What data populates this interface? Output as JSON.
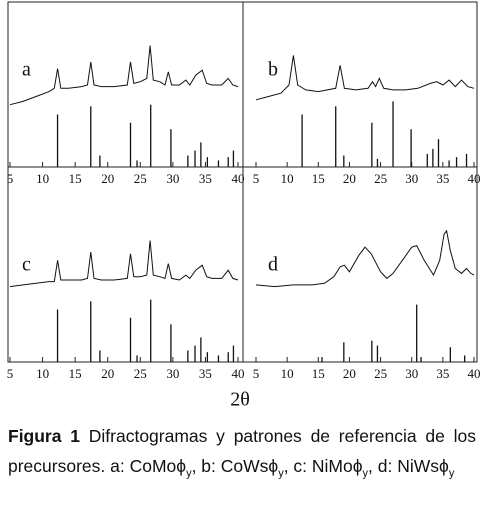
{
  "chart_data": [
    {
      "type": "line",
      "label": "a",
      "xlim": [
        5,
        40
      ],
      "xticks": [
        5,
        10,
        15,
        20,
        25,
        30,
        35,
        40
      ],
      "ylim": [
        0,
        100
      ],
      "series": [
        {
          "type": "line",
          "color": "#111111",
          "x": [
            5,
            7,
            9,
            11,
            11.8,
            12.3,
            12.8,
            14,
            16,
            16.9,
            17.4,
            17.9,
            19,
            21,
            23,
            23.5,
            24,
            25,
            26,
            26.5,
            27,
            28,
            28.8,
            29.3,
            29.8,
            31,
            32,
            32.6,
            33.5,
            34.5,
            35.2,
            36,
            37.5,
            38.5,
            39.2,
            40
          ],
          "values": [
            38,
            40,
            43,
            46,
            48,
            60,
            48,
            48,
            49,
            50,
            64,
            50,
            49,
            49,
            50,
            64,
            51,
            52,
            54,
            74,
            53,
            52,
            50,
            58,
            50,
            50,
            53,
            50,
            56,
            59,
            51,
            50,
            50,
            54,
            50,
            49
          ]
        },
        {
          "type": "stick",
          "color": "#111111",
          "x": [
            12.3,
            17.4,
            18.8,
            23.5,
            24.5,
            26.6,
            29.7,
            32.3,
            33.4,
            34.3,
            35.3,
            37,
            38.5,
            39.3
          ],
          "values": [
            32,
            37,
            7,
            27,
            4,
            38,
            23,
            7,
            10,
            15,
            6,
            4,
            6,
            10
          ]
        }
      ]
    },
    {
      "type": "line",
      "label": "b",
      "xlim": [
        5,
        40
      ],
      "xticks": [
        5,
        10,
        15,
        20,
        25,
        30,
        35,
        40
      ],
      "ylim": [
        0,
        100
      ],
      "series": [
        {
          "type": "line",
          "color": "#111111",
          "x": [
            5,
            7,
            9,
            10.3,
            11,
            11.7,
            13,
            15,
            17.8,
            18.5,
            19.2,
            21,
            23,
            23.7,
            24.2,
            24.8,
            25.5,
            27,
            29,
            31,
            33,
            34,
            35,
            36,
            37,
            38,
            39,
            40
          ],
          "values": [
            41,
            43,
            45,
            50,
            68,
            50,
            47,
            46,
            48,
            62,
            48,
            47,
            48,
            52,
            49,
            54,
            48,
            47,
            47,
            48,
            51,
            52,
            50,
            53,
            49,
            53,
            49,
            48
          ]
        },
        {
          "type": "stick",
          "color": "#111111",
          "x": [
            12.4,
            17.8,
            19.1,
            23.6,
            24.5,
            27,
            29.9,
            32.5,
            33.4,
            34.3,
            36,
            37.2,
            38.8
          ],
          "values": [
            32,
            37,
            7,
            27,
            5,
            40,
            23,
            8,
            11,
            17,
            4,
            6,
            8
          ]
        }
      ]
    },
    {
      "type": "line",
      "label": "c",
      "xlim": [
        5,
        40
      ],
      "xticks": [
        5,
        10,
        15,
        20,
        25,
        30,
        35,
        40
      ],
      "ylim": [
        0,
        100
      ],
      "series": [
        {
          "type": "line",
          "color": "#111111",
          "x": [
            5,
            7,
            9,
            11,
            11.8,
            12.3,
            12.8,
            14,
            16,
            16.9,
            17.4,
            17.9,
            19,
            21,
            23,
            23.5,
            24,
            25,
            26,
            26.5,
            27,
            28,
            28.8,
            29.3,
            29.8,
            31,
            32,
            32.6,
            33.5,
            34.5,
            35.2,
            36,
            37.5,
            38.5,
            39.2,
            40
          ],
          "values": [
            46,
            47,
            48,
            49,
            49,
            62,
            50,
            50,
            50,
            51,
            67,
            51,
            50,
            50,
            51,
            66,
            52,
            52,
            53,
            74,
            53,
            52,
            51,
            60,
            51,
            50,
            53,
            51,
            56,
            59,
            52,
            51,
            51,
            56,
            51,
            50
          ]
        },
        {
          "type": "stick",
          "color": "#111111",
          "x": [
            12.3,
            17.4,
            18.8,
            23.5,
            24.5,
            26.6,
            29.7,
            32.3,
            33.4,
            34.3,
            35.3,
            37,
            38.5,
            39.3
          ],
          "values": [
            32,
            37,
            7,
            27,
            4,
            38,
            23,
            7,
            10,
            15,
            6,
            4,
            6,
            10
          ]
        }
      ]
    },
    {
      "type": "line",
      "label": "d",
      "xlim": [
        5,
        40
      ],
      "xticks": [
        5,
        10,
        15,
        20,
        25,
        30,
        35,
        40
      ],
      "ylim": [
        0,
        100
      ],
      "series": [
        {
          "type": "line",
          "color": "#111111",
          "x": [
            5,
            8,
            11,
            14,
            16,
            17.5,
            18.5,
            19.2,
            20,
            21.5,
            22.5,
            23.5,
            25,
            26,
            27,
            28.5,
            30,
            30.8,
            32,
            33.5,
            34.5,
            35.2,
            35.6,
            36.2,
            37,
            38,
            38.8,
            39.5,
            40
          ],
          "values": [
            47,
            46,
            47,
            47,
            48,
            52,
            58,
            59,
            55,
            65,
            70,
            66,
            55,
            51,
            54,
            62,
            70,
            71,
            62,
            53,
            62,
            78,
            80,
            68,
            57,
            54,
            57,
            54,
            53
          ]
        },
        {
          "type": "stick",
          "color": "#111111",
          "x": [
            15.6,
            19.1,
            23.6,
            24.5,
            30.8,
            31.5,
            36.2,
            38.5
          ],
          "values": [
            3,
            12,
            13,
            10,
            35,
            3,
            9,
            4
          ]
        }
      ]
    }
  ],
  "xlabel": "2θ",
  "caption": {
    "label": "Figura 1",
    "parts": [
      "Difractogramas y patrones de referencia de los precursores. a: CoMoϕ",
      "y",
      ", b: CoWsϕ",
      "y",
      ", c: NiMoϕ",
      "y",
      ", d: NiWsϕ",
      "y"
    ]
  }
}
